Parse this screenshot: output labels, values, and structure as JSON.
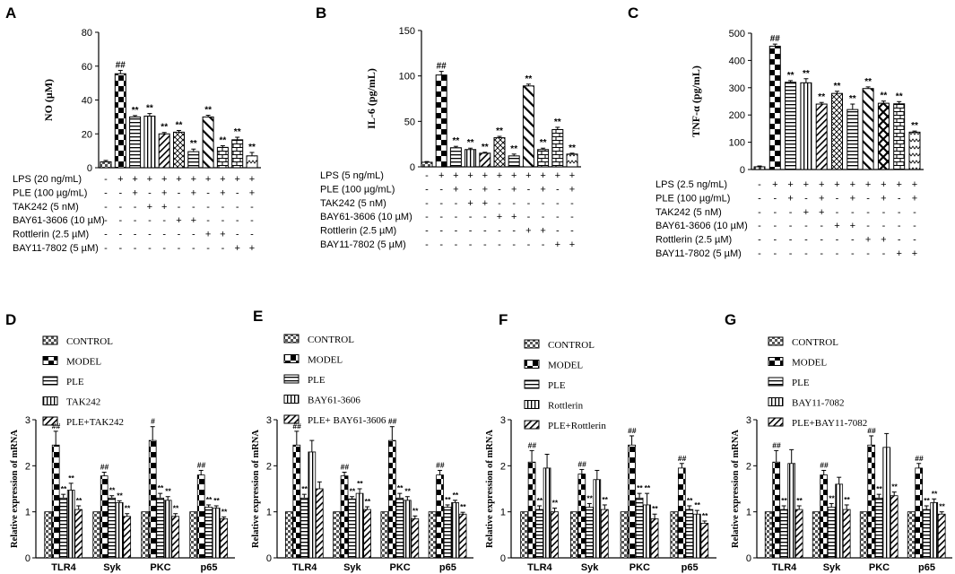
{
  "figure": {
    "top_panels": {
      "y_ticks": {
        "A": [
          "0",
          "20",
          "40",
          "60",
          "80"
        ],
        "B": [
          "0",
          "50",
          "100",
          "150"
        ],
        "C": [
          "0",
          "100",
          "200",
          "300",
          "400",
          "500"
        ]
      }
    },
    "treatment_rows": {
      "A": [
        {
          "label": "LPS (20 ng/mL)",
          "signs": [
            "-",
            "+",
            "+",
            "+",
            "+",
            "+",
            "+",
            "+",
            "+",
            "+",
            "+"
          ]
        },
        {
          "label": "PLE (100 µg/mL)",
          "signs": [
            "-",
            "-",
            "+",
            "-",
            "+",
            "-",
            "+",
            "-",
            "+",
            "-",
            "+"
          ]
        },
        {
          "label": "TAK242 (5 nM)",
          "signs": [
            "-",
            "-",
            "-",
            "+",
            "+",
            "-",
            "-",
            "-",
            "-",
            "-",
            "-"
          ]
        },
        {
          "label": "BAY61-3606 (10 µM)",
          "signs": [
            "-",
            "-",
            "-",
            "-",
            "-",
            "+",
            "+",
            "-",
            "-",
            "-",
            "-"
          ]
        },
        {
          "label": "Rottlerin (2.5 µM)",
          "signs": [
            "-",
            "-",
            "-",
            "-",
            "-",
            "-",
            "-",
            "+",
            "+",
            "-",
            "-"
          ]
        },
        {
          "label": "BAY11-7802 (5 µM)",
          "signs": [
            "-",
            "-",
            "-",
            "-",
            "-",
            "-",
            "-",
            "-",
            "-",
            "+",
            "+"
          ]
        }
      ],
      "B": [
        {
          "label": "LPS (5 ng/mL)",
          "signs": [
            "-",
            "+",
            "+",
            "+",
            "+",
            "+",
            "+",
            "+",
            "+",
            "+",
            "+"
          ]
        },
        {
          "label": "PLE (100 µg/mL)",
          "signs": [
            "-",
            "-",
            "+",
            "-",
            "+",
            "-",
            "+",
            "-",
            "+",
            "-",
            "+"
          ]
        },
        {
          "label": "TAK242 (5 nM)",
          "signs": [
            "-",
            "-",
            "-",
            "+",
            "+",
            "-",
            "-",
            "-",
            "-",
            "-",
            "-"
          ]
        },
        {
          "label": "BAY61-3606 (10 µM)",
          "signs": [
            "-",
            "-",
            "-",
            "-",
            "-",
            "+",
            "+",
            "-",
            "-",
            "-",
            "-"
          ]
        },
        {
          "label": "Rottlerin (2.5 µM)",
          "signs": [
            "-",
            "-",
            "-",
            "-",
            "-",
            "-",
            "-",
            "+",
            "+",
            "-",
            "-"
          ]
        },
        {
          "label": "BAY11-7802 (5 µM)",
          "signs": [
            "-",
            "-",
            "-",
            "-",
            "-",
            "-",
            "-",
            "-",
            "-",
            "+",
            "+"
          ]
        }
      ],
      "C": [
        {
          "label": "LPS (2.5 ng/mL)",
          "signs": [
            "-",
            "+",
            "+",
            "+",
            "+",
            "+",
            "+",
            "+",
            "+",
            "+",
            "+"
          ]
        },
        {
          "label": "PLE (100 µg/mL)",
          "signs": [
            "-",
            "-",
            "+",
            "-",
            "+",
            "-",
            "+",
            "-",
            "+",
            "-",
            "+"
          ]
        },
        {
          "label": "TAK242 (5 nM)",
          "signs": [
            "-",
            "-",
            "-",
            "+",
            "+",
            "-",
            "-",
            "-",
            "-",
            "-",
            "-"
          ]
        },
        {
          "label": "BAY61-3606 (10 µM)",
          "signs": [
            "-",
            "-",
            "-",
            "-",
            "-",
            "+",
            "+",
            "-",
            "-",
            "-",
            "-"
          ]
        },
        {
          "label": "Rottlerin (2.5 µM)",
          "signs": [
            "-",
            "-",
            "-",
            "-",
            "-",
            "-",
            "-",
            "+",
            "+",
            "-",
            "-"
          ]
        },
        {
          "label": "BAY11-7802 (5 µM)",
          "signs": [
            "-",
            "-",
            "-",
            "-",
            "-",
            "-",
            "-",
            "-",
            "-",
            "+",
            "+"
          ]
        }
      ]
    },
    "bottom_panels": {
      "y_ticks": [
        "0",
        "1",
        "2",
        "3"
      ]
    }
  },
  "chart_data": [
    {
      "panel": "A",
      "type": "bar",
      "title": "",
      "xlabel": "",
      "ylabel": "NO (μM)",
      "ylim": [
        0,
        80
      ],
      "categories": [
        "1",
        "2",
        "3",
        "4",
        "5",
        "6",
        "7",
        "8",
        "9",
        "10",
        "11"
      ],
      "values": [
        3.5,
        55.5,
        30,
        30.5,
        20,
        21,
        9.5,
        30,
        12,
        16.5,
        7
      ],
      "errors": [
        0.8,
        2,
        0.8,
        1.5,
        0.8,
        1,
        1.5,
        1,
        1,
        1.5,
        2
      ],
      "patterns": [
        "check",
        "bigcheck",
        "hlines",
        "vlines",
        "diag",
        "hatchx",
        "hlines",
        "diagwide",
        "bricks",
        "bricks",
        "wave"
      ],
      "annotations": [
        "",
        "##",
        "**",
        "**",
        "**",
        "**",
        "**",
        "**",
        "**",
        "**",
        "**"
      ]
    },
    {
      "panel": "B",
      "type": "bar",
      "title": "",
      "xlabel": "",
      "ylabel": "IL-6 (pg/mL)",
      "ylim": [
        0,
        150
      ],
      "categories": [
        "1",
        "2",
        "3",
        "4",
        "5",
        "6",
        "7",
        "8",
        "9",
        "10",
        "11"
      ],
      "values": [
        5,
        101,
        21,
        19,
        15,
        32,
        12,
        89,
        19,
        41,
        14
      ],
      "errors": [
        0.8,
        4,
        1.5,
        1.5,
        1,
        1.5,
        2,
        2,
        1.5,
        2.5,
        1
      ],
      "patterns": [
        "check",
        "bigcheck",
        "hlines",
        "vlines",
        "diag",
        "hatchx",
        "hlines",
        "diagwide",
        "bricks",
        "bricks",
        "wave"
      ],
      "annotations": [
        "",
        "##",
        "**",
        "**",
        "**",
        "**",
        "**",
        "**",
        "**",
        "**",
        "**"
      ]
    },
    {
      "panel": "C",
      "type": "bar",
      "title": "",
      "xlabel": "",
      "ylabel": "TNF-α (pg/mL)",
      "ylim": [
        0,
        500
      ],
      "categories": [
        "1",
        "2",
        "3",
        "4",
        "5",
        "6",
        "7",
        "8",
        "9",
        "10",
        "11"
      ],
      "values": [
        10,
        452,
        320,
        318,
        240,
        279,
        220,
        297,
        243,
        241,
        137
      ],
      "errors": [
        3,
        8,
        6,
        15,
        6,
        8,
        20,
        6,
        8,
        8,
        4
      ],
      "patterns": [
        "check",
        "bigcheck",
        "hlines",
        "vlines",
        "diag",
        "hatchx",
        "hlines",
        "diagwide",
        "crossbig",
        "bricks",
        "wave"
      ],
      "annotations": [
        "",
        "##",
        "**",
        "**",
        "**",
        "**",
        "**",
        "**",
        "**",
        "**",
        "**"
      ]
    },
    {
      "panel": "D",
      "type": "bar",
      "title": "",
      "xlabel": "",
      "ylabel": "Relative expression of mRNA",
      "ylim": [
        0,
        3
      ],
      "categories": [
        "TLR4",
        "Syk",
        "PKC",
        "p65"
      ],
      "legend": [
        "CONTROL",
        "MODEL",
        "PLE",
        "TAK242",
        "PLE+TAK242"
      ],
      "series": [
        {
          "name": "CONTROL",
          "values": [
            1,
            1,
            1,
            1
          ],
          "errors": [
            0,
            0,
            0,
            0
          ],
          "annotations": [
            "",
            "",
            "",
            ""
          ]
        },
        {
          "name": "MODEL",
          "values": [
            2.45,
            1.78,
            2.55,
            1.8
          ],
          "errors": [
            0.3,
            0.08,
            0.3,
            0.1
          ],
          "annotations": [
            "##",
            "##",
            "#",
            "##"
          ]
        },
        {
          "name": "PLE",
          "values": [
            1.3,
            1.3,
            1.3,
            1.1
          ],
          "errors": [
            0.08,
            0.05,
            0.1,
            0.05
          ],
          "annotations": [
            "**",
            "**",
            "**",
            "**"
          ]
        },
        {
          "name": "TAK242",
          "values": [
            1.47,
            1.2,
            1.25,
            1.08
          ],
          "errors": [
            0.15,
            0.04,
            0.08,
            0.05
          ],
          "annotations": [
            "**",
            "**",
            "**",
            "**"
          ]
        },
        {
          "name": "PLE+TAK242",
          "values": [
            1.05,
            0.9,
            0.9,
            0.85
          ],
          "errors": [
            0.08,
            0.06,
            0.06,
            0.04
          ],
          "annotations": [
            "**",
            "**",
            "**",
            "**"
          ]
        }
      ]
    },
    {
      "panel": "E",
      "type": "bar",
      "title": "",
      "xlabel": "",
      "ylabel": "Relative expression of mRNA",
      "ylim": [
        0,
        3
      ],
      "categories": [
        "TLR4",
        "Syk",
        "PKC",
        "p65"
      ],
      "legend": [
        "CONTROL",
        "MODEL",
        "PLE",
        "BAY61-3606",
        "PLE+ BAY61-3606"
      ],
      "series": [
        {
          "name": "CONTROL",
          "values": [
            1,
            1,
            1,
            1
          ],
          "errors": [
            0,
            0,
            0,
            0
          ],
          "annotations": [
            "",
            "",
            "",
            ""
          ]
        },
        {
          "name": "MODEL",
          "values": [
            2.45,
            1.78,
            2.55,
            1.8
          ],
          "errors": [
            0.3,
            0.08,
            0.3,
            0.1
          ],
          "annotations": [
            "##",
            "##",
            "##",
            "##"
          ]
        },
        {
          "name": "PLE",
          "values": [
            1.3,
            1.28,
            1.3,
            1.1
          ],
          "errors": [
            0.08,
            0.05,
            0.1,
            0.05
          ],
          "annotations": [
            "**",
            "**",
            "**",
            "**"
          ]
        },
        {
          "name": "BAY61-3606",
          "values": [
            2.3,
            1.4,
            1.25,
            1.2
          ],
          "errors": [
            0.25,
            0.1,
            0.08,
            0.05
          ],
          "annotations": [
            "",
            "**",
            "**",
            "**"
          ]
        },
        {
          "name": "PLE+ BAY61-3606",
          "values": [
            1.5,
            1.05,
            0.85,
            0.95
          ],
          "errors": [
            0.15,
            0.06,
            0.06,
            0.04
          ],
          "annotations": [
            "",
            "**",
            "**",
            "**"
          ]
        }
      ]
    },
    {
      "panel": "F",
      "type": "bar",
      "title": "",
      "xlabel": "",
      "ylabel": "Relative expression of mRNA",
      "ylim": [
        0,
        3
      ],
      "categories": [
        "TLR4",
        "Syk",
        "PKC",
        "p65"
      ],
      "legend": [
        "CONTROL",
        "MODEL",
        "PLE",
        "Rottlerin",
        "PLE+Rottlerin"
      ],
      "series": [
        {
          "name": "CONTROL",
          "values": [
            1,
            1,
            1,
            1
          ],
          "errors": [
            0,
            0,
            0,
            0
          ],
          "annotations": [
            "",
            "",
            "",
            ""
          ]
        },
        {
          "name": "MODEL",
          "values": [
            2.08,
            1.82,
            2.45,
            1.95
          ],
          "errors": [
            0.25,
            0.1,
            0.2,
            0.1
          ],
          "annotations": [
            "##",
            "##",
            "##",
            "##"
          ]
        },
        {
          "name": "PLE",
          "values": [
            1.05,
            1.1,
            1.3,
            1.05
          ],
          "errors": [
            0.08,
            0.08,
            0.1,
            0.08
          ],
          "annotations": [
            "**",
            "**",
            "**",
            "**"
          ]
        },
        {
          "name": "Rottlerin",
          "values": [
            1.95,
            1.7,
            1.15,
            0.95
          ],
          "errors": [
            0.3,
            0.2,
            0.25,
            0.08
          ],
          "annotations": [
            "",
            "",
            "**",
            "**"
          ]
        },
        {
          "name": "PLE+Rottlerin",
          "values": [
            1.0,
            1.05,
            0.85,
            0.75
          ],
          "errors": [
            0.08,
            0.1,
            0.1,
            0.05
          ],
          "annotations": [
            "**",
            "**",
            "**",
            "**"
          ]
        }
      ]
    },
    {
      "panel": "G",
      "type": "bar",
      "title": "",
      "xlabel": "",
      "ylabel": "Relative expression of mRNA",
      "ylim": [
        0,
        3
      ],
      "categories": [
        "TLR4",
        "Syk",
        "PKC",
        "p65"
      ],
      "legend": [
        "CONTROL",
        "MODEL",
        "PLE",
        "BAY11-7082",
        "PLE+BAY11-7082"
      ],
      "series": [
        {
          "name": "CONTROL",
          "values": [
            1,
            1,
            1,
            1
          ],
          "errors": [
            0,
            0,
            0,
            0
          ],
          "annotations": [
            "",
            "",
            "",
            ""
          ]
        },
        {
          "name": "MODEL",
          "values": [
            2.08,
            1.8,
            2.45,
            1.95
          ],
          "errors": [
            0.25,
            0.1,
            0.2,
            0.1
          ],
          "annotations": [
            "##",
            "##",
            "##",
            "##"
          ]
        },
        {
          "name": "PLE",
          "values": [
            1.05,
            1.1,
            1.3,
            1.05
          ],
          "errors": [
            0.08,
            0.08,
            0.08,
            0.08
          ],
          "annotations": [
            "**",
            "**",
            "**",
            "**"
          ]
        },
        {
          "name": "BAY11-7082",
          "values": [
            2.05,
            1.6,
            2.4,
            1.2
          ],
          "errors": [
            0.3,
            0.15,
            0.3,
            0.08
          ],
          "annotations": [
            "",
            "",
            "",
            "**"
          ]
        },
        {
          "name": "PLE+BAY11-7082",
          "values": [
            1.05,
            1.05,
            1.35,
            0.95
          ],
          "errors": [
            0.08,
            0.1,
            0.08,
            0.05
          ],
          "annotations": [
            "**",
            "**",
            "**",
            "**"
          ]
        }
      ]
    }
  ]
}
